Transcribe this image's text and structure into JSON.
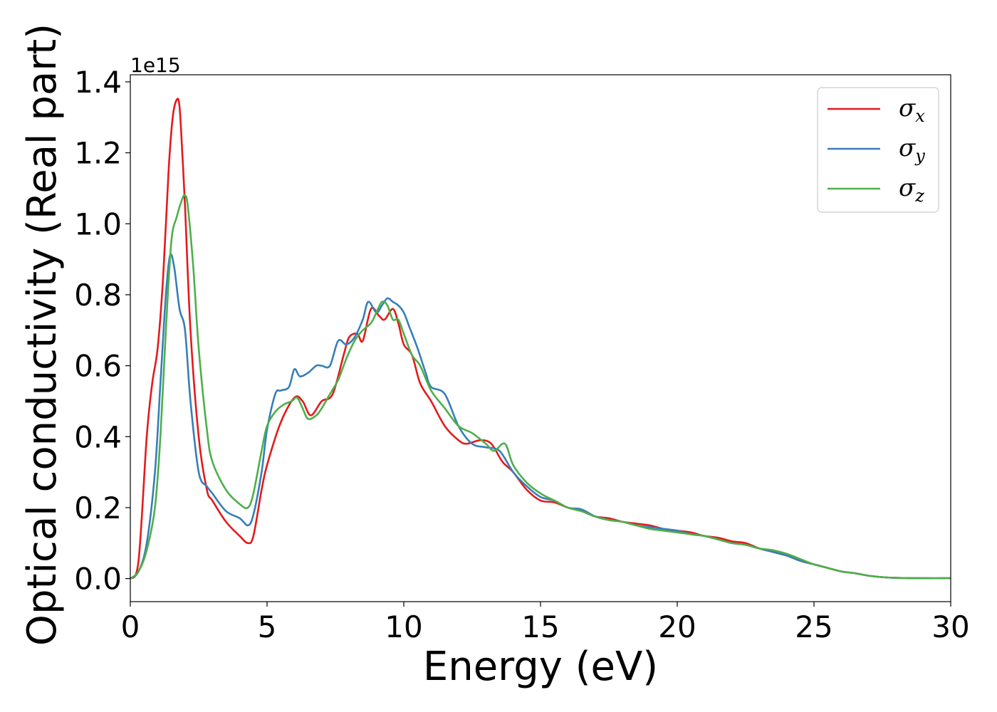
{
  "chart_data": {
    "type": "line",
    "title": "",
    "xlabel": "Energy (eV)",
    "ylabel": "Optical conductivity (Real part)",
    "y_offset_label": "1e15",
    "xlim": [
      0,
      30
    ],
    "ylim": [
      -0.065,
      1.42
    ],
    "x_ticks": [
      0,
      5,
      10,
      15,
      20,
      25,
      30
    ],
    "x_tick_labels": [
      "0",
      "5",
      "10",
      "15",
      "20",
      "25",
      "30"
    ],
    "y_ticks": [
      0.0,
      0.2,
      0.4,
      0.6,
      0.8,
      1.0,
      1.2,
      1.4
    ],
    "y_tick_labels": [
      "0.0",
      "0.2",
      "0.4",
      "0.6",
      "0.8",
      "1.0",
      "1.2",
      "1.4"
    ],
    "grid": false,
    "legend_position": "top-right",
    "series": [
      {
        "name": "σx",
        "symbol": "σ",
        "subscript": "x",
        "color": "#e41a1c",
        "x": [
          0,
          0.3,
          0.6,
          0.8,
          1.0,
          1.2,
          1.4,
          1.55,
          1.7,
          1.8,
          1.9,
          2.0,
          2.2,
          2.5,
          2.8,
          3.0,
          3.5,
          4.0,
          4.3,
          4.5,
          4.8,
          5.0,
          5.5,
          6.0,
          6.3,
          6.6,
          7.0,
          7.4,
          7.8,
          8.0,
          8.3,
          8.5,
          8.8,
          9.1,
          9.3,
          9.6,
          9.8,
          10.0,
          10.3,
          10.6,
          11.0,
          11.5,
          12.0,
          12.3,
          12.8,
          13.2,
          13.6,
          14.0,
          14.5,
          15.0,
          15.5,
          16.0,
          16.5,
          17.0,
          17.5,
          18.0,
          18.5,
          19.0,
          19.5,
          20.0,
          20.5,
          21.0,
          21.5,
          22.0,
          22.5,
          23.0,
          23.5,
          24.0,
          24.5,
          25.0,
          25.5,
          26.0,
          26.5,
          27.0,
          27.5,
          28.0,
          29.0,
          30.0
        ],
        "y": [
          0,
          0.05,
          0.4,
          0.55,
          0.65,
          0.85,
          1.15,
          1.3,
          1.35,
          1.33,
          1.2,
          1.05,
          0.7,
          0.4,
          0.25,
          0.22,
          0.16,
          0.12,
          0.1,
          0.12,
          0.25,
          0.32,
          0.44,
          0.51,
          0.5,
          0.46,
          0.5,
          0.52,
          0.63,
          0.68,
          0.69,
          0.67,
          0.76,
          0.74,
          0.73,
          0.76,
          0.72,
          0.66,
          0.63,
          0.55,
          0.5,
          0.43,
          0.39,
          0.38,
          0.39,
          0.38,
          0.33,
          0.3,
          0.25,
          0.22,
          0.215,
          0.2,
          0.19,
          0.175,
          0.17,
          0.16,
          0.155,
          0.15,
          0.14,
          0.135,
          0.13,
          0.12,
          0.115,
          0.105,
          0.1,
          0.085,
          0.075,
          0.065,
          0.05,
          0.04,
          0.03,
          0.02,
          0.015,
          0.008,
          0.004,
          0.002,
          0.001,
          0.001
        ]
      },
      {
        "name": "σy",
        "symbol": "σ",
        "subscript": "y",
        "color": "#377eb8",
        "x": [
          0,
          0.3,
          0.6,
          0.9,
          1.1,
          1.3,
          1.45,
          1.6,
          1.8,
          2.0,
          2.2,
          2.5,
          2.8,
          3.0,
          3.5,
          4.0,
          4.3,
          4.5,
          4.8,
          5.0,
          5.3,
          5.5,
          5.8,
          6.0,
          6.2,
          6.5,
          6.8,
          7.0,
          7.3,
          7.6,
          7.9,
          8.2,
          8.5,
          8.7,
          9.0,
          9.2,
          9.4,
          9.6,
          9.8,
          10.0,
          10.2,
          10.5,
          10.8,
          11.0,
          11.5,
          12.0,
          12.5,
          13.0,
          13.5,
          14.0,
          14.5,
          15.0,
          15.5,
          16.0,
          16.5,
          17.0,
          17.5,
          18.0,
          18.5,
          19.0,
          19.5,
          20.0,
          20.5,
          21.0,
          21.5,
          22.0,
          22.5,
          23.0,
          23.5,
          24.0,
          24.5,
          25.0,
          25.5,
          26.0,
          26.5,
          27.0,
          27.5,
          28.0,
          29.0,
          30.0
        ],
        "y": [
          0,
          0.02,
          0.1,
          0.3,
          0.55,
          0.8,
          0.91,
          0.88,
          0.76,
          0.7,
          0.5,
          0.3,
          0.26,
          0.24,
          0.19,
          0.17,
          0.15,
          0.18,
          0.3,
          0.42,
          0.52,
          0.53,
          0.54,
          0.59,
          0.57,
          0.58,
          0.6,
          0.6,
          0.6,
          0.67,
          0.66,
          0.68,
          0.73,
          0.78,
          0.75,
          0.77,
          0.79,
          0.78,
          0.77,
          0.75,
          0.71,
          0.65,
          0.58,
          0.54,
          0.52,
          0.43,
          0.38,
          0.37,
          0.36,
          0.3,
          0.26,
          0.23,
          0.22,
          0.2,
          0.195,
          0.175,
          0.165,
          0.16,
          0.15,
          0.145,
          0.14,
          0.135,
          0.125,
          0.12,
          0.11,
          0.1,
          0.095,
          0.085,
          0.075,
          0.065,
          0.05,
          0.04,
          0.03,
          0.02,
          0.015,
          0.008,
          0.004,
          0.002,
          0.001,
          0.001
        ]
      },
      {
        "name": "σz",
        "symbol": "σ",
        "subscript": "z",
        "color": "#4daf4a",
        "x": [
          0,
          0.3,
          0.6,
          0.9,
          1.1,
          1.3,
          1.5,
          1.7,
          1.9,
          2.0,
          2.1,
          2.3,
          2.5,
          2.8,
          3.0,
          3.5,
          4.0,
          4.3,
          4.5,
          4.8,
          5.0,
          5.3,
          5.6,
          5.9,
          6.1,
          6.3,
          6.5,
          6.8,
          7.0,
          7.3,
          7.6,
          7.9,
          8.2,
          8.5,
          8.8,
          9.0,
          9.2,
          9.4,
          9.6,
          9.8,
          10.0,
          10.3,
          10.6,
          11.0,
          11.5,
          12.0,
          12.5,
          13.0,
          13.3,
          13.7,
          14.0,
          14.5,
          15.0,
          15.5,
          16.0,
          16.5,
          17.0,
          17.5,
          18.0,
          18.5,
          19.0,
          19.5,
          20.0,
          20.5,
          21.0,
          21.5,
          22.0,
          22.5,
          23.0,
          23.5,
          24.0,
          24.5,
          25.0,
          25.5,
          26.0,
          26.5,
          27.0,
          27.5,
          28.0,
          29.0,
          30.0
        ],
        "y": [
          0,
          0.02,
          0.08,
          0.2,
          0.4,
          0.7,
          0.95,
          1.02,
          1.07,
          1.08,
          1.05,
          0.88,
          0.65,
          0.42,
          0.33,
          0.25,
          0.21,
          0.2,
          0.24,
          0.36,
          0.43,
          0.47,
          0.49,
          0.5,
          0.51,
          0.48,
          0.45,
          0.46,
          0.48,
          0.52,
          0.56,
          0.62,
          0.67,
          0.7,
          0.72,
          0.75,
          0.78,
          0.77,
          0.73,
          0.73,
          0.69,
          0.63,
          0.6,
          0.53,
          0.48,
          0.43,
          0.41,
          0.38,
          0.36,
          0.38,
          0.32,
          0.27,
          0.24,
          0.22,
          0.2,
          0.19,
          0.175,
          0.165,
          0.16,
          0.15,
          0.14,
          0.135,
          0.13,
          0.125,
          0.12,
          0.11,
          0.1,
          0.095,
          0.085,
          0.08,
          0.07,
          0.055,
          0.04,
          0.03,
          0.02,
          0.015,
          0.008,
          0.004,
          0.002,
          0.001,
          0.001
        ]
      }
    ]
  }
}
